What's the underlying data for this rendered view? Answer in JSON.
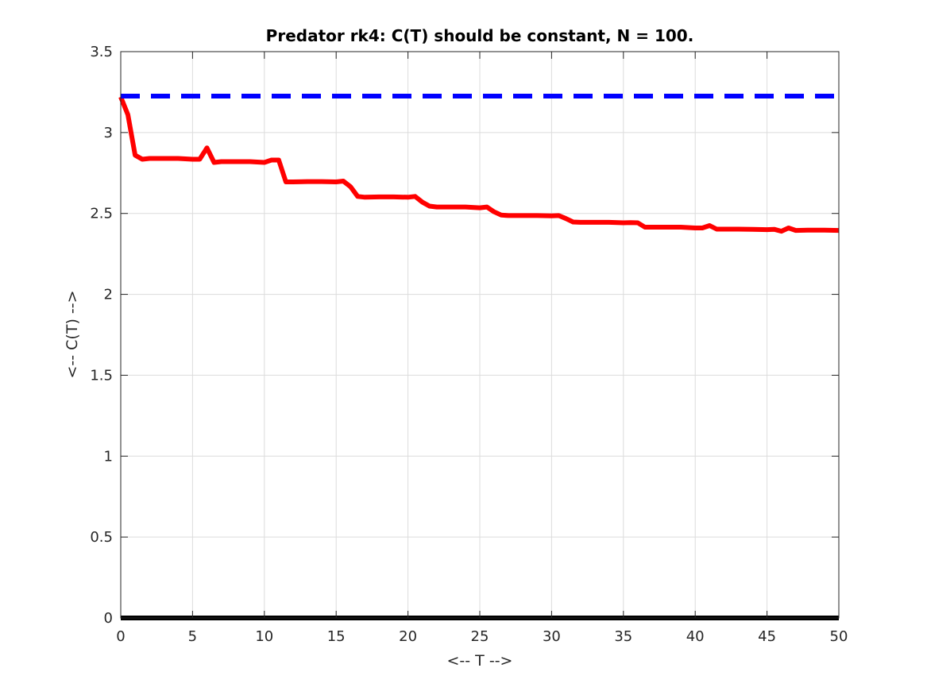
{
  "chart_data": {
    "type": "line",
    "title": "Predator rk4: C(T) should be constant, N = 100.",
    "xlabel": "<-- T -->",
    "ylabel": "<-- C(T) -->",
    "xlim": [
      0,
      50
    ],
    "ylim": [
      0,
      3.5
    ],
    "grid": true,
    "x_ticks": [
      "0",
      "5",
      "10",
      "15",
      "20",
      "25",
      "30",
      "35",
      "40",
      "45",
      "50"
    ],
    "y_ticks": [
      "0",
      "0.5",
      "1",
      "1.5",
      "2",
      "2.5",
      "3",
      "3.5"
    ],
    "series": [
      {
        "style": "solid",
        "color": "#ff0000",
        "x": [
          0,
          0.5,
          1,
          1.5,
          2,
          3,
          4,
          5,
          5.5,
          6,
          6.5,
          7,
          8,
          9,
          10,
          10.5,
          11,
          11.5,
          12,
          13,
          14,
          15,
          15.5,
          16,
          16.5,
          17,
          18,
          19,
          20,
          20.5,
          21,
          21.5,
          22,
          23,
          24,
          25,
          25.5,
          26,
          26.5,
          27,
          28,
          29,
          30,
          30.5,
          31,
          31.5,
          32,
          33,
          34,
          35,
          35.5,
          36,
          36.5,
          37,
          38,
          39,
          40,
          40.5,
          41,
          41.5,
          42,
          43,
          44,
          45,
          45.5,
          46,
          46.5,
          47,
          48,
          49,
          50
        ],
        "y": [
          3.22,
          3.11,
          2.86,
          2.835,
          2.84,
          2.84,
          2.84,
          2.835,
          2.835,
          2.905,
          2.815,
          2.82,
          2.82,
          2.82,
          2.815,
          2.83,
          2.83,
          2.695,
          2.695,
          2.697,
          2.697,
          2.695,
          2.7,
          2.665,
          2.605,
          2.6,
          2.602,
          2.602,
          2.6,
          2.605,
          2.57,
          2.545,
          2.54,
          2.54,
          2.54,
          2.535,
          2.54,
          2.51,
          2.49,
          2.487,
          2.487,
          2.487,
          2.485,
          2.487,
          2.468,
          2.447,
          2.445,
          2.445,
          2.445,
          2.442,
          2.443,
          2.442,
          2.415,
          2.415,
          2.415,
          2.415,
          2.41,
          2.41,
          2.425,
          2.403,
          2.403,
          2.403,
          2.402,
          2.4,
          2.402,
          2.39,
          2.41,
          2.395,
          2.397,
          2.397,
          2.395
        ]
      },
      {
        "style": "dashed",
        "color": "#0000ff",
        "x": [
          0,
          50
        ],
        "y": [
          3.225,
          3.225
        ]
      },
      {
        "style": "solid",
        "color": "#000000",
        "x": [
          0,
          50
        ],
        "y": [
          0,
          0
        ]
      }
    ]
  }
}
